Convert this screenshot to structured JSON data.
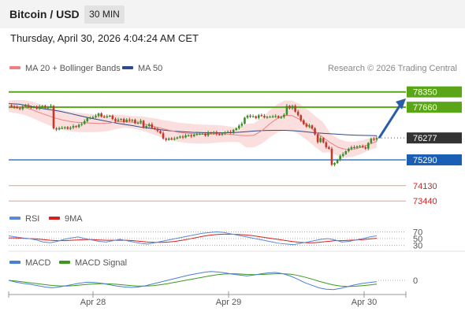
{
  "header": {
    "title": "Bitcoin / USD",
    "timeframe": "30 MIN"
  },
  "datetime": "Thursday, April 30, 2026 4:04:24 AM CET",
  "legend": {
    "ma20": "MA 20 + Bollinger Bands",
    "ma50": "MA 50",
    "copyright": "Research © 2026 Trading Central"
  },
  "rsi_legend": {
    "rsi": "RSI",
    "ma": "9MA"
  },
  "macd_legend": {
    "macd": "MACD",
    "signal": "MACD Signal"
  },
  "colors": {
    "resistance": "#5aa618",
    "support": "#1a5fb4",
    "pivot_low": "#ef9a9a",
    "candle_up": "#3a8f2a",
    "candle_down": "#c0392b",
    "ma20": "#f08080",
    "ma50": "#2c4a8c",
    "band": "#fad3d3",
    "rsi": "#5b8bd8",
    "rsi_ma": "#d62020",
    "macd": "#4a7fd6",
    "macd_signal": "#3c9a1a",
    "arrow": "#2a5da8"
  },
  "chart_data": [
    {
      "type": "candlestick",
      "title": "Bitcoin / USD",
      "x_ticks": [
        "Apr 28",
        "Apr 29",
        "Apr 30"
      ],
      "ylim": [
        73200,
        78800
      ],
      "levels": [
        {
          "value": 78350,
          "label": "78350",
          "kind": "resistance"
        },
        {
          "value": 77660,
          "label": "77660",
          "kind": "resistance"
        },
        {
          "value": 76277,
          "label": "76277",
          "kind": "last"
        },
        {
          "value": 75290,
          "label": "75290",
          "kind": "support"
        },
        {
          "value": 74130,
          "label": "74130",
          "kind": "support-2"
        },
        {
          "value": 73440,
          "label": "73440",
          "kind": "support-3"
        }
      ],
      "close_path": [
        77740,
        77690,
        77660,
        77620,
        77580,
        77700,
        77740,
        77690,
        77650,
        77670,
        77600,
        77690,
        77720,
        77650,
        77650,
        77720,
        76710,
        76660,
        76720,
        76730,
        76760,
        76690,
        76740,
        76810,
        76770,
        76870,
        76910,
        77030,
        77180,
        77190,
        77210,
        77270,
        77380,
        77240,
        77230,
        77250,
        77280,
        77130,
        77040,
        77100,
        77130,
        77000,
        77100,
        77060,
        77090,
        76940,
        76970,
        77050,
        76740,
        76810,
        76890,
        76730,
        76690,
        76590,
        76490,
        76250,
        76190,
        76250,
        76230,
        76250,
        76300,
        76340,
        76300,
        76390,
        76400,
        76350,
        76420,
        76470,
        76470,
        76470,
        76390,
        76520,
        76480,
        76540,
        76450,
        76420,
        76480,
        76530,
        76550,
        76510,
        76640,
        76710,
        76830,
        76920,
        77190,
        77280,
        77240,
        77250,
        77180,
        77300,
        77270,
        77210,
        77230,
        77230,
        77250,
        77260,
        77190,
        77220,
        77320,
        77720,
        77610,
        77720,
        77460,
        77300,
        77070,
        76900,
        76790,
        76840,
        76710,
        76440,
        76090,
        76270,
        76080,
        75860,
        75790,
        75070,
        75150,
        75280,
        75470,
        75550,
        75680,
        75790,
        75860,
        75840,
        75900,
        75910,
        75860,
        75800,
        76050,
        76240,
        76200,
        76277
      ],
      "ma20_path": [
        77700,
        77690,
        77650,
        77560,
        77420,
        77300,
        77180,
        77090,
        77020,
        76980,
        76960,
        76940,
        76930,
        76940,
        77000,
        77020,
        76990,
        76950,
        76880,
        76790,
        76700,
        76620,
        76540,
        76500,
        76470,
        76450,
        76450,
        76460,
        76460,
        76440,
        76400,
        76380,
        76400,
        76600,
        76900,
        77150,
        77300,
        77280,
        77100,
        76850,
        76560,
        76300,
        76050,
        75850,
        75760,
        75770,
        75860,
        75990,
        76120
      ],
      "ma50_path": [
        77820,
        77800,
        77720,
        77620,
        77550,
        77480,
        77380,
        77270,
        77170,
        77080,
        76990,
        76910,
        76840,
        76760,
        76700,
        76640,
        76590,
        76560,
        76530,
        76520,
        76510,
        76510,
        76520,
        76550,
        76590,
        76610,
        76620,
        76620,
        76600,
        76560,
        76510,
        76480,
        76450,
        76420,
        76400,
        76390,
        76380
      ],
      "target_arrow": {
        "from": 76277,
        "to": 77950
      }
    },
    {
      "type": "line",
      "title": "RSI",
      "yticks": [
        70,
        50,
        30
      ],
      "ylim": [
        20,
        80
      ],
      "series": [
        {
          "name": "RSI",
          "values": [
            58,
            55,
            52,
            50,
            46,
            40,
            38,
            42,
            48,
            52,
            55,
            50,
            46,
            42,
            40,
            44,
            48,
            44,
            40,
            36,
            34,
            38,
            42,
            46,
            50,
            54,
            58,
            62,
            66,
            68,
            70,
            68,
            64,
            60,
            56,
            52,
            48,
            44,
            40,
            36,
            34,
            32,
            36,
            40,
            44,
            48,
            50,
            46,
            40,
            42,
            46,
            50,
            55,
            58
          ]
        },
        {
          "name": "9MA",
          "values": [
            52,
            52,
            51,
            50,
            49,
            47,
            45,
            44,
            44,
            45,
            46,
            47,
            47,
            46,
            45,
            45,
            45,
            45,
            44,
            42,
            40,
            39,
            39,
            40,
            42,
            45,
            49,
            53,
            57,
            60,
            62,
            63,
            63,
            62,
            61,
            59,
            56,
            53,
            50,
            47,
            44,
            41,
            39,
            38,
            38,
            40,
            42,
            44,
            44,
            45,
            46,
            47,
            49,
            51
          ]
        }
      ]
    },
    {
      "type": "line",
      "title": "MACD",
      "yticks": [
        0
      ],
      "series": [
        {
          "name": "MACD",
          "values": [
            0,
            -8,
            -14,
            -18,
            -24,
            -30,
            -34,
            -30,
            -24,
            -18,
            -12,
            -8,
            -10,
            -14,
            -20,
            -26,
            -30,
            -32,
            -30,
            -24,
            -16,
            -8,
            0,
            8,
            16,
            24,
            30,
            36,
            40,
            38,
            34,
            28,
            24,
            20,
            24,
            30,
            34,
            36,
            30,
            20,
            6,
            -10,
            -22,
            -34,
            -40,
            -42,
            -36,
            -28,
            -20,
            -14,
            -10,
            -6
          ]
        },
        {
          "name": "MACD Signal",
          "values": [
            0,
            -3,
            -7,
            -11,
            -15,
            -19,
            -23,
            -25,
            -26,
            -24,
            -21,
            -18,
            -16,
            -15,
            -16,
            -18,
            -21,
            -24,
            -26,
            -26,
            -24,
            -20,
            -15,
            -9,
            -3,
            3,
            9,
            15,
            21,
            26,
            29,
            30,
            29,
            27,
            26,
            27,
            28,
            30,
            30,
            28,
            23,
            15,
            6,
            -4,
            -13,
            -21,
            -26,
            -28,
            -27,
            -24,
            -21,
            -17
          ]
        }
      ]
    }
  ]
}
